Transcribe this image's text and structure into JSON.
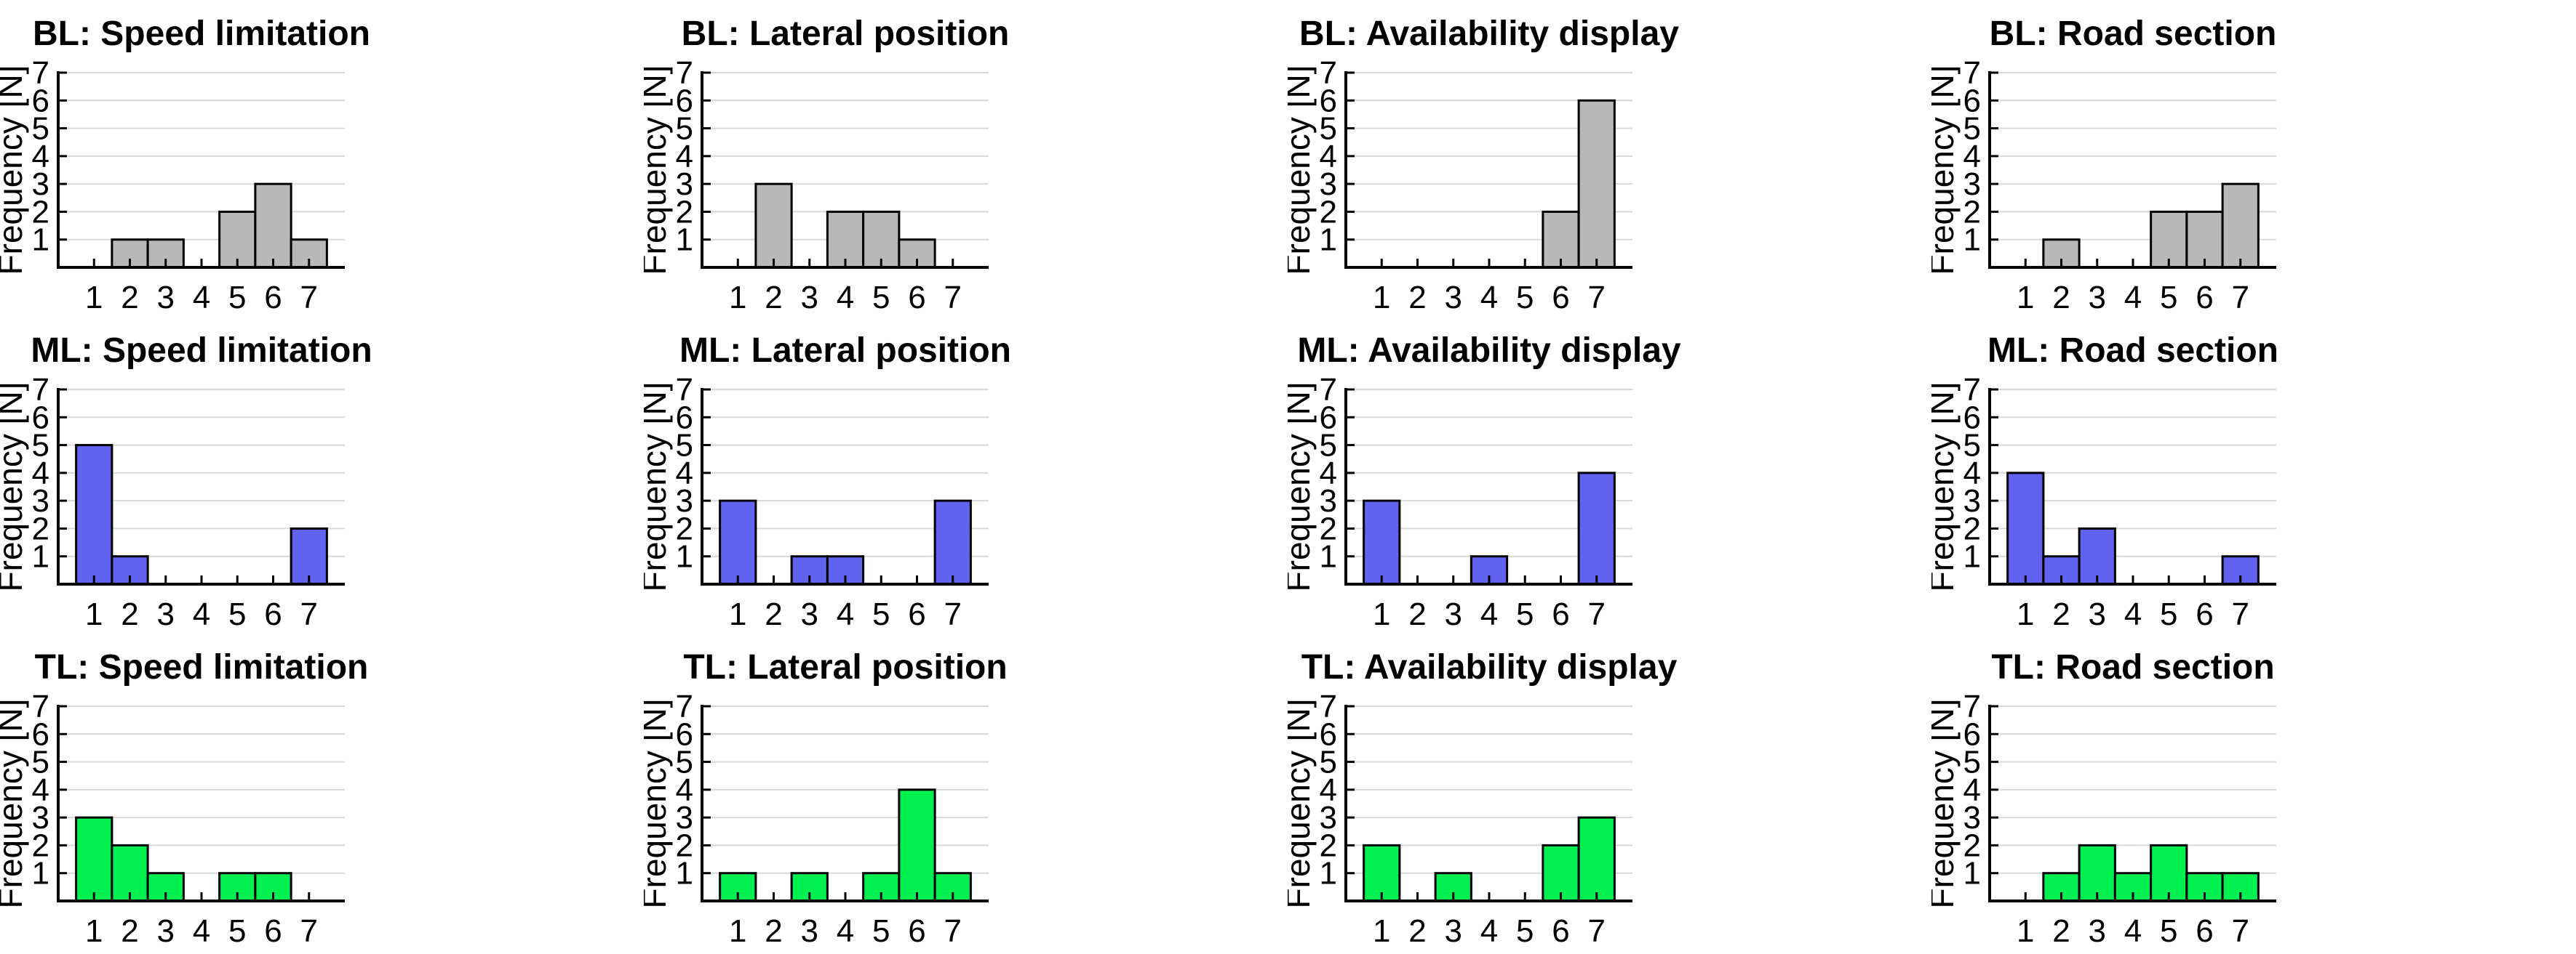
{
  "figure": {
    "ylabel": "Frequency [N]",
    "x_tick_labels": [
      "1",
      "2",
      "3",
      "4",
      "5",
      "6",
      "7"
    ],
    "y_tick_labels": [
      "1",
      "2",
      "3",
      "4",
      "5",
      "6",
      "7"
    ],
    "background_color": "#ffffff",
    "grid_color": "#d8d8d8",
    "axis_color": "#000000",
    "row_colors": {
      "BL": "#b8b8b8",
      "ML": "#6262f0",
      "TL": "#00f050"
    }
  },
  "chart_data": [
    {
      "type": "bar",
      "title": "BL: Speed limitation",
      "row": "BL",
      "color": "#b8b8b8",
      "categories": [
        1,
        2,
        3,
        4,
        5,
        6,
        7
      ],
      "values": [
        0,
        1,
        1,
        0,
        2,
        3,
        1
      ],
      "xlabel": "",
      "ylabel": "Frequency [N]",
      "ylim": [
        0,
        7
      ],
      "grid": "horizontal"
    },
    {
      "type": "bar",
      "title": "BL: Lateral position",
      "row": "BL",
      "color": "#b8b8b8",
      "categories": [
        1,
        2,
        3,
        4,
        5,
        6,
        7
      ],
      "values": [
        0,
        3,
        0,
        2,
        2,
        1,
        0
      ],
      "xlabel": "",
      "ylabel": "Frequency [N]",
      "ylim": [
        0,
        7
      ],
      "grid": "horizontal"
    },
    {
      "type": "bar",
      "title": "BL: Availability display",
      "row": "BL",
      "color": "#b8b8b8",
      "categories": [
        1,
        2,
        3,
        4,
        5,
        6,
        7
      ],
      "values": [
        0,
        0,
        0,
        0,
        0,
        2,
        6
      ],
      "xlabel": "",
      "ylabel": "Frequency [N]",
      "ylim": [
        0,
        7
      ],
      "grid": "horizontal"
    },
    {
      "type": "bar",
      "title": "BL: Road section",
      "row": "BL",
      "color": "#b8b8b8",
      "categories": [
        1,
        2,
        3,
        4,
        5,
        6,
        7
      ],
      "values": [
        0,
        1,
        0,
        0,
        2,
        2,
        3
      ],
      "xlabel": "",
      "ylabel": "Frequency [N]",
      "ylim": [
        0,
        7
      ],
      "grid": "horizontal"
    },
    {
      "type": "bar",
      "title": "ML: Speed limitation",
      "row": "ML",
      "color": "#6262f0",
      "categories": [
        1,
        2,
        3,
        4,
        5,
        6,
        7
      ],
      "values": [
        5,
        1,
        0,
        0,
        0,
        0,
        2
      ],
      "xlabel": "",
      "ylabel": "Frequency [N]",
      "ylim": [
        0,
        7
      ],
      "grid": "horizontal"
    },
    {
      "type": "bar",
      "title": "ML: Lateral position",
      "row": "ML",
      "color": "#6262f0",
      "categories": [
        1,
        2,
        3,
        4,
        5,
        6,
        7
      ],
      "values": [
        3,
        0,
        1,
        1,
        0,
        0,
        3
      ],
      "xlabel": "",
      "ylabel": "Frequency [N]",
      "ylim": [
        0,
        7
      ],
      "grid": "horizontal"
    },
    {
      "type": "bar",
      "title": "ML: Availability display",
      "row": "ML",
      "color": "#6262f0",
      "categories": [
        1,
        2,
        3,
        4,
        5,
        6,
        7
      ],
      "values": [
        3,
        0,
        0,
        1,
        0,
        0,
        4
      ],
      "xlabel": "",
      "ylabel": "Frequency [N]",
      "ylim": [
        0,
        7
      ],
      "grid": "horizontal"
    },
    {
      "type": "bar",
      "title": "ML: Road section",
      "row": "ML",
      "color": "#6262f0",
      "categories": [
        1,
        2,
        3,
        4,
        5,
        6,
        7
      ],
      "values": [
        4,
        1,
        2,
        0,
        0,
        0,
        1
      ],
      "xlabel": "",
      "ylabel": "Frequency [N]",
      "ylim": [
        0,
        7
      ],
      "grid": "horizontal"
    },
    {
      "type": "bar",
      "title": "TL: Speed limitation",
      "row": "TL",
      "color": "#00f050",
      "categories": [
        1,
        2,
        3,
        4,
        5,
        6,
        7
      ],
      "values": [
        3,
        2,
        1,
        0,
        1,
        1,
        0
      ],
      "xlabel": "",
      "ylabel": "Frequency [N]",
      "ylim": [
        0,
        7
      ],
      "grid": "horizontal"
    },
    {
      "type": "bar",
      "title": "TL: Lateral position",
      "row": "TL",
      "color": "#00f050",
      "categories": [
        1,
        2,
        3,
        4,
        5,
        6,
        7
      ],
      "values": [
        1,
        0,
        1,
        0,
        1,
        4,
        1
      ],
      "xlabel": "",
      "ylabel": "Frequency [N]",
      "ylim": [
        0,
        7
      ],
      "grid": "horizontal"
    },
    {
      "type": "bar",
      "title": "TL: Availability display",
      "row": "TL",
      "color": "#00f050",
      "categories": [
        1,
        2,
        3,
        4,
        5,
        6,
        7
      ],
      "values": [
        2,
        0,
        1,
        0,
        0,
        2,
        3
      ],
      "xlabel": "",
      "ylabel": "Frequency [N]",
      "ylim": [
        0,
        7
      ],
      "grid": "horizontal"
    },
    {
      "type": "bar",
      "title": "TL: Road section",
      "row": "TL",
      "color": "#00f050",
      "categories": [
        1,
        2,
        3,
        4,
        5,
        6,
        7
      ],
      "values": [
        0,
        1,
        2,
        1,
        2,
        1,
        1
      ],
      "xlabel": "",
      "ylabel": "Frequency [N]",
      "ylim": [
        0,
        7
      ],
      "grid": "horizontal"
    }
  ]
}
